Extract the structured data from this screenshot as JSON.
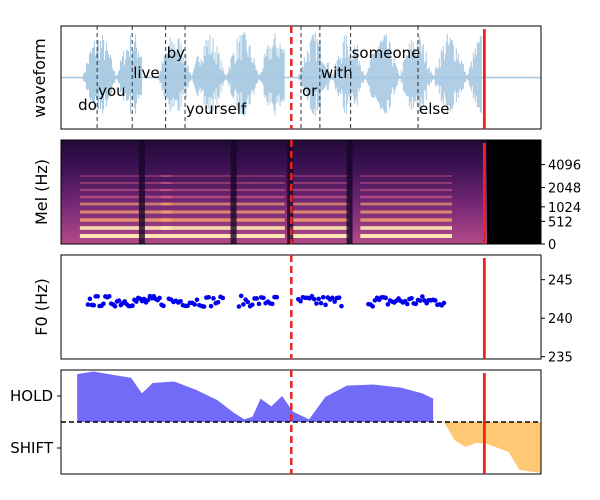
{
  "colors": {
    "waveform": "#a6c8e2",
    "hold_fill": "#6a63f7",
    "shift_fill": "#ffc56e",
    "f0_points": "#0000ee",
    "cursor": "#ee2222"
  },
  "chart_data": [
    {
      "id": "waveform",
      "type": "area",
      "ylabel": "waveform",
      "grid": false,
      "words": [
        {
          "text": "do",
          "start": 0.0,
          "end": 0.37
        },
        {
          "text": "you",
          "start": 0.37,
          "end": 1.02
        },
        {
          "text": "live",
          "start": 1.02,
          "end": 1.64
        },
        {
          "text": "by",
          "start": 1.64,
          "end": 2.0
        },
        {
          "text": "yourself",
          "start": 2.0,
          "end": 4.15
        },
        {
          "text": "or",
          "start": 4.15,
          "end": 4.5
        },
        {
          "text": "with",
          "start": 4.5,
          "end": 5.07
        },
        {
          "text": "someone",
          "start": 5.07,
          "end": 6.32
        },
        {
          "text": "else",
          "start": 6.32,
          "end": 7.4
        }
      ],
      "speech_segments": [
        [
          0.1,
          1.2
        ],
        [
          1.5,
          3.85
        ],
        [
          4.1,
          7.5
        ]
      ],
      "xlim": [
        -0.3,
        8.6
      ],
      "ylim": [
        -1,
        1
      ]
    },
    {
      "id": "mel",
      "type": "heatmap",
      "ylabel": "Mel (Hz)",
      "yticks": [
        "0",
        "512",
        "1024",
        "2048",
        "4096"
      ],
      "note_yscale": "mel",
      "xlim": [
        -0.3,
        8.6
      ]
    },
    {
      "id": "f0",
      "type": "scatter",
      "ylabel": "F0 (Hz)",
      "yticks": [
        235,
        240,
        245
      ],
      "ylim": [
        234.7,
        248.2
      ],
      "segments": [
        {
          "start": 0.2,
          "end": 1.6,
          "n": 40
        },
        {
          "start": 1.7,
          "end": 2.7,
          "n": 24
        },
        {
          "start": 3.0,
          "end": 3.7,
          "n": 18
        },
        {
          "start": 4.1,
          "end": 4.9,
          "n": 20
        },
        {
          "start": 5.4,
          "end": 6.8,
          "n": 36
        }
      ],
      "mean": 242.2,
      "spread": 0.7,
      "xlim": [
        -0.3,
        8.6
      ]
    },
    {
      "id": "turn",
      "type": "area",
      "ytick_labels": [
        "HOLD",
        "SHIFT"
      ],
      "ylim": [
        -1.0,
        1.0
      ],
      "threshold": 0.0,
      "hold_end": 6.6,
      "shift_start": 6.8,
      "hold_points": [
        [
          0.0,
          0.92
        ],
        [
          0.3,
          0.97
        ],
        [
          0.7,
          0.9
        ],
        [
          1.0,
          0.85
        ],
        [
          1.2,
          0.55
        ],
        [
          1.4,
          0.75
        ],
        [
          1.8,
          0.78
        ],
        [
          2.2,
          0.62
        ],
        [
          2.6,
          0.42
        ],
        [
          2.9,
          0.18
        ],
        [
          3.1,
          0.05
        ],
        [
          3.25,
          0.1
        ],
        [
          3.4,
          0.45
        ],
        [
          3.6,
          0.3
        ],
        [
          3.8,
          0.5
        ],
        [
          4.0,
          0.2
        ],
        [
          4.3,
          0.05
        ],
        [
          4.6,
          0.48
        ],
        [
          5.0,
          0.7
        ],
        [
          5.5,
          0.72
        ],
        [
          6.0,
          0.66
        ],
        [
          6.4,
          0.55
        ],
        [
          6.6,
          0.45
        ]
      ],
      "shift_points": [
        [
          6.8,
          0.0
        ],
        [
          7.0,
          -0.35
        ],
        [
          7.2,
          -0.48
        ],
        [
          7.4,
          -0.4
        ],
        [
          7.6,
          -0.42
        ],
        [
          7.8,
          -0.5
        ],
        [
          8.0,
          -0.58
        ],
        [
          8.2,
          -0.92
        ],
        [
          8.6,
          -0.98
        ]
      ],
      "xlim": [
        -0.3,
        8.6
      ]
    }
  ],
  "markers": {
    "dashed_cursor_x": 3.97,
    "solid_cursor_x": 7.55
  }
}
